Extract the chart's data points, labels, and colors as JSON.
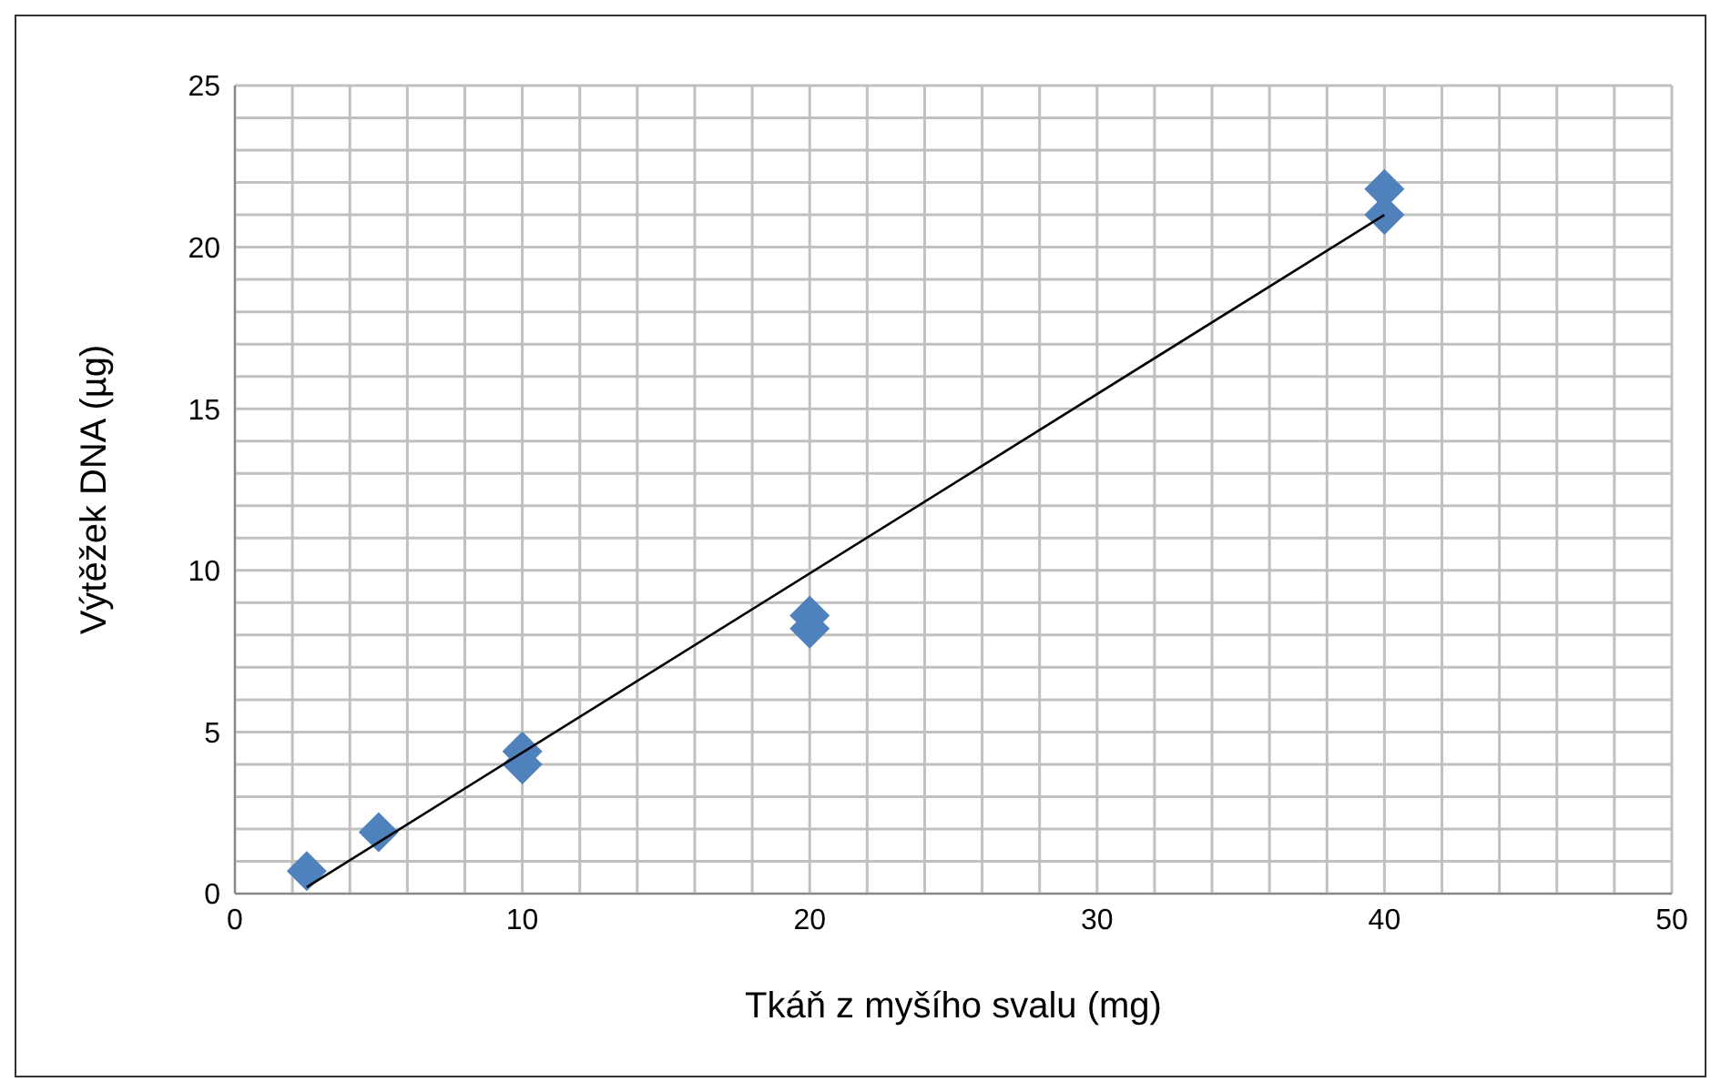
{
  "chart_data": {
    "type": "scatter",
    "xlabel": "Tkáň z myšího svalu (mg)",
    "ylabel": "Výtěžek DNA (µg)",
    "series": [
      {
        "color": "#4f81bd",
        "marker": "diamond",
        "x": [
          2.5,
          5,
          10,
          10,
          20,
          20,
          40,
          40
        ],
        "values": [
          0.7,
          1.9,
          4.4,
          4.0,
          8.6,
          8.2,
          21.8,
          21.0
        ]
      },
      {
        "type": "line",
        "color": "#000000",
        "marker": "none",
        "x": [
          2.5,
          40
        ],
        "values": [
          0.2,
          21.0
        ]
      }
    ],
    "xlim": [
      0,
      50
    ],
    "xticks": [
      0,
      {
        "value": 2,
        "label": null
      },
      {
        "value": 4,
        "label": null
      },
      {
        "value": 6,
        "label": null
      },
      {
        "value": 8,
        "label": null
      },
      10,
      {
        "value": 12,
        "label": null
      },
      {
        "value": 14,
        "label": null
      },
      {
        "value": 16,
        "label": null
      },
      {
        "value": 18,
        "label": null
      },
      20,
      {
        "value": 22,
        "label": null
      },
      {
        "value": 24,
        "label": null
      },
      {
        "value": 26,
        "label": null
      },
      {
        "value": 28,
        "label": null
      },
      30,
      {
        "value": 32,
        "label": null
      },
      {
        "value": 34,
        "label": null
      },
      {
        "value": 36,
        "label": null
      },
      {
        "value": 38,
        "label": null
      },
      40,
      {
        "value": 42,
        "label": null
      },
      {
        "value": 44,
        "label": null
      },
      {
        "value": 46,
        "label": null
      },
      {
        "value": 48,
        "label": null
      },
      50
    ],
    "ylim": [
      0,
      25
    ],
    "yticks": [
      0,
      {
        "value": 1,
        "label": null
      },
      {
        "value": 2,
        "label": null
      },
      {
        "value": 3,
        "label": null
      },
      {
        "value": 4,
        "label": null
      },
      5,
      {
        "value": 6,
        "label": null
      },
      {
        "value": 7,
        "label": null
      },
      {
        "value": 8,
        "label": null
      },
      {
        "value": 9,
        "label": null
      },
      10,
      {
        "value": 11,
        "label": null
      },
      {
        "value": 12,
        "label": null
      },
      {
        "value": 13,
        "label": null
      },
      {
        "value": 14,
        "label": null
      },
      15,
      {
        "value": 16,
        "label": null
      },
      {
        "value": 17,
        "label": null
      },
      {
        "value": 18,
        "label": null
      },
      {
        "value": 19,
        "label": null
      },
      20,
      {
        "value": 21,
        "label": null
      },
      {
        "value": 22,
        "label": null
      },
      {
        "value": 23,
        "label": null
      },
      {
        "value": 24,
        "label": null
      },
      25
    ],
    "grid": true,
    "legend": false
  }
}
